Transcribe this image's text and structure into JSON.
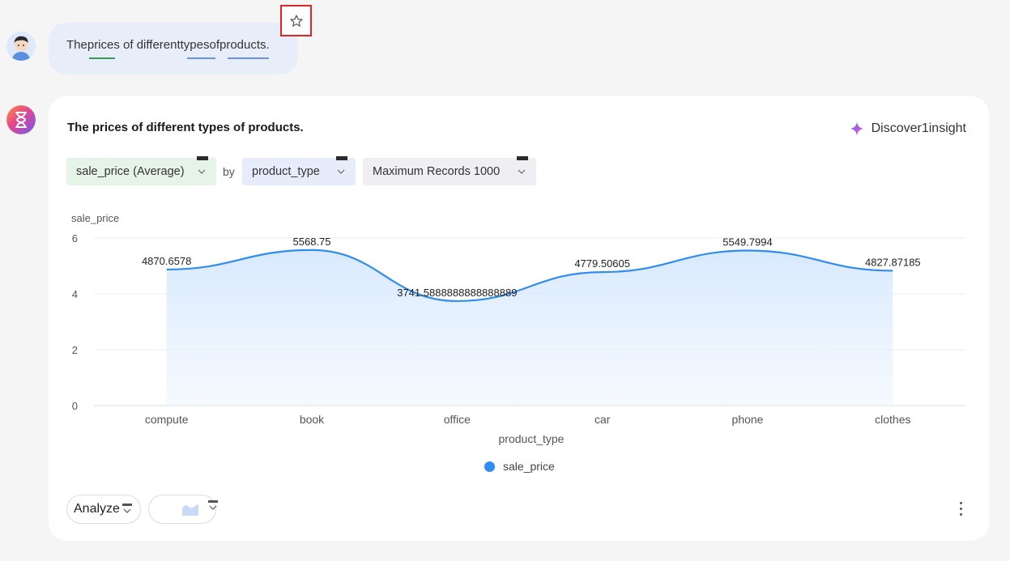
{
  "user_message": {
    "text": "Theprices of differenttypesofproducts."
  },
  "card": {
    "title": "The prices of different types of products.",
    "insight_label": "Discover1insight",
    "controls": {
      "measure": "sale_price  (Average)",
      "by_label": "by",
      "dimension": "product_type",
      "records": "Maximum  Records  1000"
    },
    "analyze_label": "Analyze"
  },
  "colors": {
    "accent": "#2f8cf0",
    "area_fill": "#dcebfd",
    "measure_pill": "#e6f4e8",
    "dimension_pill": "#e6ecfa",
    "records_pill": "#efeff3",
    "star_highlight": "#e02424"
  },
  "icons": {
    "star": "star-icon",
    "insight": "sparkle-icon",
    "more": "more-vertical-icon",
    "chart_type": "area-chart-icon"
  },
  "chart_data": {
    "type": "area",
    "categories": [
      "compute",
      "book",
      "office",
      "car",
      "phone",
      "clothes"
    ],
    "series": [
      {
        "name": "sale_price",
        "values": [
          4870.6578,
          5568.75,
          3741.588888888889,
          4779.50605,
          5549.7994,
          4827.87185
        ],
        "labels": [
          "4870.6578",
          "5568.75",
          "3741.5888888888888889",
          "4779.50605",
          "5549.7994",
          "4827.87185"
        ]
      }
    ],
    "ylabel": "sale_price",
    "xlabel": "product_type",
    "y_ticks": [
      "0",
      "2",
      "4",
      "6"
    ],
    "ylim": [
      0,
      6000
    ],
    "grid": true,
    "legend": "bottom-center",
    "smooth": true
  }
}
